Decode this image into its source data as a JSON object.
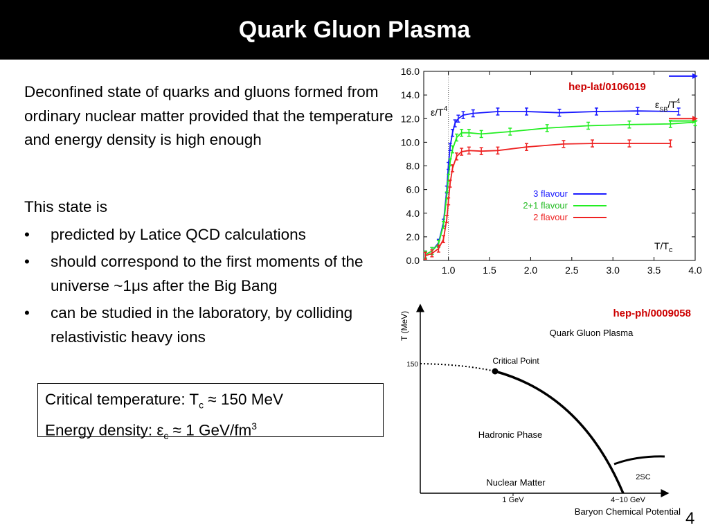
{
  "slide": {
    "title": "Quark Gluon Plasma",
    "page_number": "4"
  },
  "intro": {
    "text": "Deconfined state of quarks and gluons formed from ordinary nuclear matter provided that the temperature and energy density is high enough"
  },
  "state": {
    "heading": "This state is",
    "bullet_char": "•",
    "bullets": [
      "predicted by Latice QCD calculations",
      "should correspond to the first moments of the universe ~1μs after the Big Bang",
      "can be studied in the laboratory, by colliding relastivistic heavy ions"
    ]
  },
  "box": {
    "line1_prefix": "Critical temperature: T",
    "line1_sub": "c",
    "line1_suffix": " ≈ 150 MeV",
    "line2_prefix": "Energy density: ε",
    "line2_sub": "c",
    "line2_suffix": " ≈ 1 GeV/fm",
    "line2_sup": "3"
  },
  "chart_data": [
    {
      "type": "line",
      "annotation": "hep-lat/0106019",
      "ylabel_main": "ε/T",
      "ylabel_sup": "4",
      "sb_label_main": "ε",
      "sb_label_sub": "SB",
      "sb_label_rest": "/T",
      "sb_label_sup": "4",
      "xlabel_main": "T/T",
      "xlabel_sub": "c",
      "xlim": [
        0.7,
        4.0
      ],
      "ylim": [
        0.0,
        16.0
      ],
      "xticks": [
        "1.0",
        "1.5",
        "2.0",
        "2.5",
        "3.0",
        "3.5",
        "4.0"
      ],
      "xtick_values": [
        1.0,
        1.5,
        2.0,
        2.5,
        3.0,
        3.5,
        4.0
      ],
      "yticks": [
        "0.0",
        "2.0",
        "4.0",
        "6.0",
        "8.0",
        "10.0",
        "12.0",
        "14.0",
        "16.0"
      ],
      "ytick_values": [
        0,
        2,
        4,
        6,
        8,
        10,
        12,
        14,
        16
      ],
      "legend_position": "center-right",
      "series": [
        {
          "name": "3 flavour",
          "color": "#1a1aff",
          "sb_limit": 15.6,
          "x": [
            0.72,
            0.8,
            0.88,
            0.94,
            0.98,
            1.0,
            1.02,
            1.05,
            1.08,
            1.12,
            1.18,
            1.3,
            1.6,
            1.95,
            2.35,
            2.8,
            3.3,
            3.8
          ],
          "y": [
            0.5,
            0.8,
            1.5,
            3.2,
            6.0,
            8.0,
            9.6,
            10.8,
            11.6,
            12.0,
            12.3,
            12.45,
            12.6,
            12.6,
            12.5,
            12.6,
            12.65,
            12.6
          ]
        },
        {
          "name": "2+1 flavour",
          "color": "#22ee22",
          "sb_limit": 11.8,
          "x": [
            0.72,
            0.8,
            0.88,
            0.94,
            0.98,
            1.0,
            1.02,
            1.05,
            1.1,
            1.16,
            1.25,
            1.4,
            1.75,
            2.2,
            2.7,
            3.2,
            3.7,
            4.0
          ],
          "y": [
            0.5,
            0.8,
            1.4,
            3.0,
            5.5,
            7.0,
            8.3,
            9.4,
            10.4,
            10.8,
            10.8,
            10.7,
            10.9,
            11.2,
            11.4,
            11.5,
            11.55,
            11.7
          ]
        },
        {
          "name": "2 flavour",
          "color": "#ee2222",
          "sb_limit": 12.0,
          "x": [
            0.72,
            0.8,
            0.88,
            0.94,
            0.98,
            1.0,
            1.02,
            1.05,
            1.1,
            1.16,
            1.25,
            1.4,
            1.6,
            1.95,
            2.4,
            2.75,
            3.2,
            3.7
          ],
          "y": [
            0.4,
            0.6,
            1.0,
            1.8,
            3.5,
            5.0,
            6.5,
            7.8,
            8.8,
            9.2,
            9.3,
            9.25,
            9.3,
            9.6,
            9.85,
            9.9,
            9.9,
            9.9
          ]
        }
      ]
    },
    {
      "type": "diagram",
      "annotation": "hep-ph/0009058",
      "ylabel": "T (MeV)",
      "xlabel": "Baryon Chemical Potential",
      "y_tick": "150",
      "x_ticks": [
        "1 GeV",
        "4−10 GeV"
      ],
      "regions": {
        "qgp": "Quark Gluon Plasma",
        "critical": "Critical Point",
        "hadronic": "Hadronic Phase",
        "nuclear": "Nuclear Matter",
        "csc": "2SC"
      }
    }
  ]
}
